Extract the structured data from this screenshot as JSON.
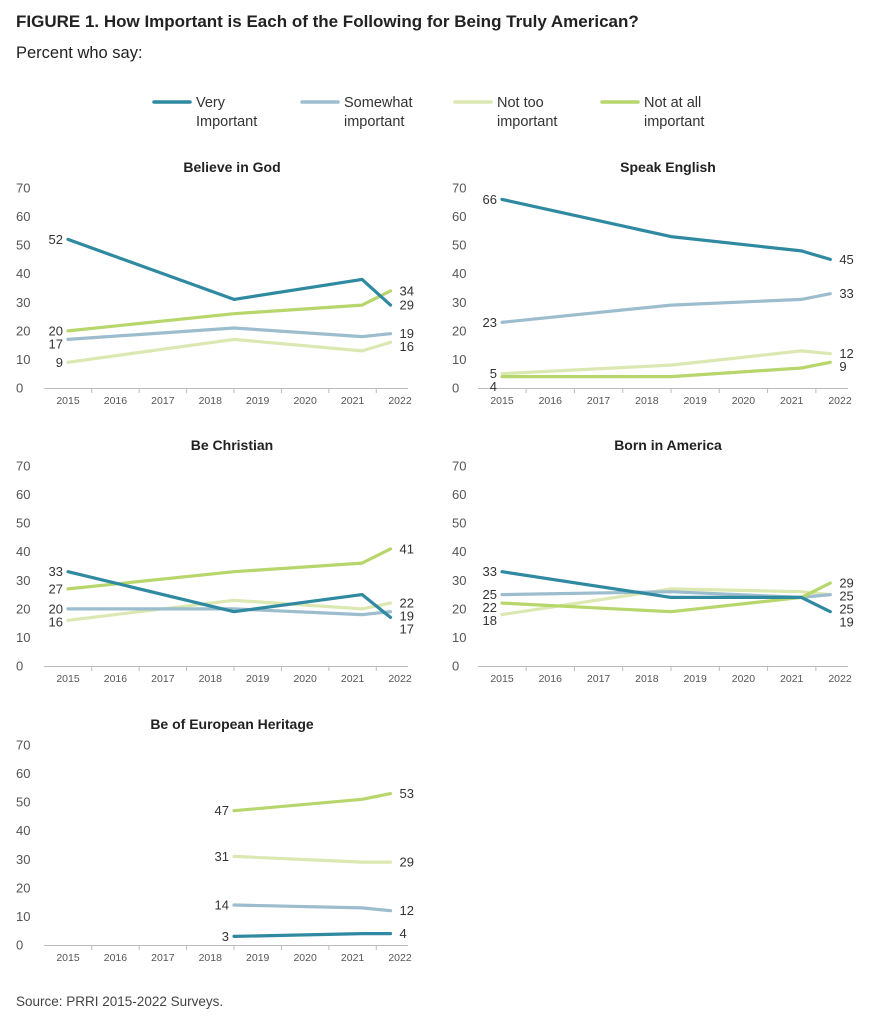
{
  "figure": {
    "title": "FIGURE 1.  How Important is Each of the Following for Being Truly American?",
    "subtitle": "Percent who say:",
    "source": "Source: PRRI 2015-2022 Surveys."
  },
  "colors": {
    "very_important": "#2f8aa1",
    "somewhat_important": "#9cbdcd",
    "not_too_important": "#dbe8b2",
    "not_at_all_important": "#b7d66c",
    "axis": "#bbbbbb",
    "tick_text": "#555555"
  },
  "legend": [
    {
      "key": "very_important",
      "lines": [
        "Very",
        "Important"
      ]
    },
    {
      "key": "somewhat_important",
      "lines": [
        "Somewhat",
        "important"
      ]
    },
    {
      "key": "not_too_important",
      "lines": [
        "Not too",
        "important"
      ]
    },
    {
      "key": "not_at_all_important",
      "lines": [
        "Not at all",
        "important"
      ]
    }
  ],
  "chart_data": [
    {
      "type": "line",
      "title": "Believe in God",
      "x_ticks": [
        "2015",
        "2016",
        "2017",
        "2018",
        "2019",
        "2020",
        "2021",
        "2022"
      ],
      "y_ticks": [
        0,
        10,
        20,
        30,
        40,
        50,
        60,
        70
      ],
      "ylim": [
        0,
        70
      ],
      "series": [
        {
          "key": "very_important",
          "x": [
            2015,
            2018.5,
            2021.2,
            2021.8
          ],
          "y": [
            52,
            31,
            38,
            29
          ],
          "labels": [
            "52",
            "",
            "",
            "29"
          ]
        },
        {
          "key": "somewhat_important",
          "x": [
            2015,
            2018.5,
            2021.2,
            2021.8
          ],
          "y": [
            17,
            21,
            18,
            19
          ],
          "labels": [
            "17",
            "",
            "",
            "19"
          ]
        },
        {
          "key": "not_too_important",
          "x": [
            2015,
            2018.5,
            2021.2,
            2021.8
          ],
          "y": [
            9,
            17,
            13,
            16
          ],
          "labels": [
            "9",
            "",
            "",
            "16"
          ]
        },
        {
          "key": "not_at_all_important",
          "x": [
            2015,
            2018.5,
            2021.2,
            2021.8
          ],
          "y": [
            20,
            26,
            29,
            34
          ],
          "labels": [
            "20",
            "",
            "",
            "34"
          ]
        }
      ]
    },
    {
      "type": "line",
      "title": "Speak English",
      "x_ticks": [
        "2015",
        "2016",
        "2017",
        "2018",
        "2019",
        "2020",
        "2021",
        "2022"
      ],
      "y_ticks": [
        0,
        10,
        20,
        30,
        40,
        50,
        60,
        70
      ],
      "ylim": [
        0,
        70
      ],
      "series": [
        {
          "key": "very_important",
          "x": [
            2015,
            2018.5,
            2021.2,
            2021.8
          ],
          "y": [
            66,
            53,
            48,
            45
          ],
          "labels": [
            "66",
            "",
            "",
            "45"
          ]
        },
        {
          "key": "somewhat_important",
          "x": [
            2015,
            2018.5,
            2021.2,
            2021.8
          ],
          "y": [
            23,
            29,
            31,
            33
          ],
          "labels": [
            "23",
            "",
            "",
            "33"
          ]
        },
        {
          "key": "not_too_important",
          "x": [
            2015,
            2018.5,
            2021.2,
            2021.8
          ],
          "y": [
            5,
            8,
            13,
            12
          ],
          "labels": [
            "5",
            "",
            "",
            "12"
          ]
        },
        {
          "key": "not_at_all_important",
          "x": [
            2015,
            2018.5,
            2021.2,
            2021.8
          ],
          "y": [
            4,
            4,
            7,
            9
          ],
          "labels": [
            "4",
            "",
            "",
            "9"
          ]
        }
      ]
    },
    {
      "type": "line",
      "title": "Be Christian",
      "x_ticks": [
        "2015",
        "2016",
        "2017",
        "2018",
        "2019",
        "2020",
        "2021",
        "2022"
      ],
      "y_ticks": [
        0,
        10,
        20,
        30,
        40,
        50,
        60,
        70
      ],
      "ylim": [
        0,
        70
      ],
      "series": [
        {
          "key": "very_important",
          "x": [
            2015,
            2018.5,
            2021.2,
            2021.8
          ],
          "y": [
            33,
            19,
            25,
            17
          ],
          "labels": [
            "33",
            "",
            "",
            "17"
          ]
        },
        {
          "key": "somewhat_important",
          "x": [
            2015,
            2018.5,
            2021.2,
            2021.8
          ],
          "y": [
            20,
            20,
            18,
            19
          ],
          "labels": [
            "20",
            "",
            "",
            "19"
          ]
        },
        {
          "key": "not_too_important",
          "x": [
            2015,
            2018.5,
            2021.2,
            2021.8
          ],
          "y": [
            16,
            23,
            20,
            22
          ],
          "labels": [
            "16",
            "",
            "",
            "22"
          ]
        },
        {
          "key": "not_at_all_important",
          "x": [
            2015,
            2018.5,
            2021.2,
            2021.8
          ],
          "y": [
            27,
            33,
            36,
            41
          ],
          "labels": [
            "27",
            "",
            "",
            "41"
          ]
        }
      ]
    },
    {
      "type": "line",
      "title": "Born in America",
      "x_ticks": [
        "2015",
        "2016",
        "2017",
        "2018",
        "2019",
        "2020",
        "2021",
        "2022"
      ],
      "y_ticks": [
        0,
        10,
        20,
        30,
        40,
        50,
        60,
        70
      ],
      "ylim": [
        0,
        70
      ],
      "series": [
        {
          "key": "very_important",
          "x": [
            2015,
            2018.5,
            2021.2,
            2021.8
          ],
          "y": [
            33,
            24,
            24,
            19
          ],
          "labels": [
            "33",
            "",
            "",
            "19"
          ]
        },
        {
          "key": "somewhat_important",
          "x": [
            2015,
            2018.5,
            2021.2,
            2021.8
          ],
          "y": [
            25,
            26,
            24,
            25
          ],
          "labels": [
            "25",
            "",
            "",
            "25"
          ]
        },
        {
          "key": "not_too_important",
          "x": [
            2015,
            2018.5,
            2021.2,
            2021.8
          ],
          "y": [
            18,
            27,
            26,
            25
          ],
          "labels": [
            "18",
            "",
            "",
            "25"
          ]
        },
        {
          "key": "not_at_all_important",
          "x": [
            2015,
            2018.5,
            2021.2,
            2021.8
          ],
          "y": [
            22,
            19,
            24,
            29
          ],
          "labels": [
            "22",
            "",
            "",
            "29"
          ]
        }
      ]
    },
    {
      "type": "line",
      "title": "Be of European Heritage",
      "x_ticks": [
        "2015",
        "2016",
        "2017",
        "2018",
        "2019",
        "2020",
        "2021",
        "2022"
      ],
      "y_ticks": [
        0,
        10,
        20,
        30,
        40,
        50,
        60,
        70
      ],
      "ylim": [
        0,
        70
      ],
      "series": [
        {
          "key": "very_important",
          "x": [
            2018.5,
            2021.2,
            2021.8
          ],
          "y": [
            3,
            4,
            4
          ],
          "labels": [
            "3",
            "",
            "4"
          ]
        },
        {
          "key": "somewhat_important",
          "x": [
            2018.5,
            2021.2,
            2021.8
          ],
          "y": [
            14,
            13,
            12
          ],
          "labels": [
            "14",
            "",
            "12"
          ]
        },
        {
          "key": "not_too_important",
          "x": [
            2018.5,
            2021.2,
            2021.8
          ],
          "y": [
            31,
            29,
            29
          ],
          "labels": [
            "31",
            "",
            "29"
          ]
        },
        {
          "key": "not_at_all_important",
          "x": [
            2018.5,
            2021.2,
            2021.8
          ],
          "y": [
            47,
            51,
            53
          ],
          "labels": [
            "47",
            "",
            "53"
          ]
        }
      ]
    }
  ]
}
